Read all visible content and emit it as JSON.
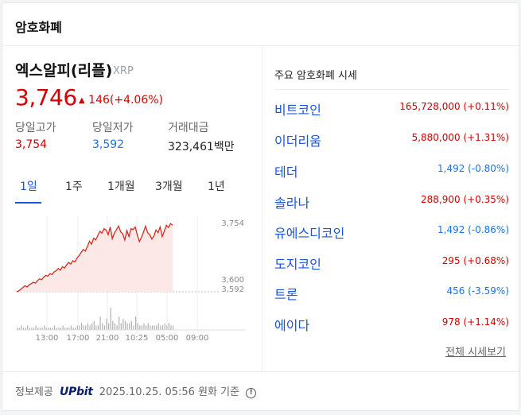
{
  "header": {
    "title": "암호화폐"
  },
  "coin": {
    "name": "엑스알피(리플)",
    "symbol": "XRP",
    "price": "3,746",
    "change_arrow": "▲",
    "change": "146(+4.06%)",
    "stats": [
      {
        "label": "당일고가",
        "value": "3,754",
        "tone": "up"
      },
      {
        "label": "당일저가",
        "value": "3,592",
        "tone": "down"
      },
      {
        "label": "거래대금",
        "value": "323,461백만",
        "tone": "dark"
      }
    ]
  },
  "tabs": [
    "1일",
    "1주",
    "1개월",
    "3개월",
    "1년"
  ],
  "active_tab": "1일",
  "chart_data": {
    "type": "area",
    "y_labels": [
      "3,754",
      "3,600",
      "3,592"
    ],
    "x_labels": [
      "13:00",
      "17:00",
      "21:00",
      "10:25",
      "05:00",
      "09:00"
    ],
    "line_color": "#d62a1e",
    "fill_color": "#fde8e8",
    "prices": [
      3592,
      3594,
      3598,
      3602,
      3606,
      3603,
      3608,
      3611,
      3614,
      3612,
      3618,
      3622,
      3620,
      3626,
      3630,
      3628,
      3634,
      3632,
      3638,
      3641,
      3646,
      3642,
      3650,
      3647,
      3654,
      3660,
      3656,
      3664,
      3661,
      3670,
      3676,
      3683,
      3690,
      3686,
      3697,
      3709,
      3702,
      3716,
      3712,
      3722,
      3732,
      3728,
      3738,
      3735,
      3724,
      3742,
      3715,
      3728,
      3736,
      3744,
      3731,
      3726,
      3712,
      3734,
      3720,
      3738,
      3736,
      3742,
      3724,
      3708,
      3718,
      3730,
      3744,
      3729,
      3724,
      3714,
      3721,
      3735,
      3729,
      3742,
      3720,
      3732,
      3746,
      3741,
      3750,
      3746
    ],
    "volume": [
      1,
      1,
      2,
      1,
      1,
      2,
      1,
      1,
      1,
      2,
      1,
      1,
      1,
      2,
      1,
      1,
      1,
      1,
      2,
      1,
      1,
      1,
      2,
      1,
      1,
      1,
      2,
      1,
      1,
      2,
      2,
      3,
      2,
      2,
      3,
      2,
      3,
      4,
      2,
      2,
      6,
      3,
      2,
      5,
      3,
      10,
      4,
      3,
      2,
      6,
      3,
      5,
      4,
      3,
      3,
      4,
      2,
      6,
      3,
      2,
      2,
      3,
      2,
      3,
      2,
      2,
      2,
      2,
      3,
      2,
      2,
      3,
      2,
      3,
      2,
      2
    ]
  },
  "market": {
    "title": "주요 암호화폐 시세",
    "rows": [
      {
        "name": "비트코인",
        "value": "165,728,000 (+0.11%)",
        "tone": "up"
      },
      {
        "name": "이더리움",
        "value": "5,880,000 (+1.31%)",
        "tone": "up"
      },
      {
        "name": "테더",
        "value": "1,492 (-0.80%)",
        "tone": "down"
      },
      {
        "name": "솔라나",
        "value": "288,900 (+0.35%)",
        "tone": "up"
      },
      {
        "name": "유에스디코인",
        "value": "1,492 (-0.86%)",
        "tone": "down"
      },
      {
        "name": "도지코인",
        "value": "295 (+0.68%)",
        "tone": "up"
      },
      {
        "name": "트론",
        "value": "456 (-3.59%)",
        "tone": "down"
      },
      {
        "name": "에이다",
        "value": "978 (+1.14%)",
        "tone": "up"
      }
    ],
    "more": "전체 시세보기"
  },
  "footer": {
    "provider_label": "정보제공",
    "brand": "UPbit",
    "timestamp": "2025.10.25. 05:56 원화 기준",
    "info_icon": "!"
  },
  "colors": {
    "up": "#d60000",
    "down": "#1a73e8",
    "link": "#1a56db"
  }
}
